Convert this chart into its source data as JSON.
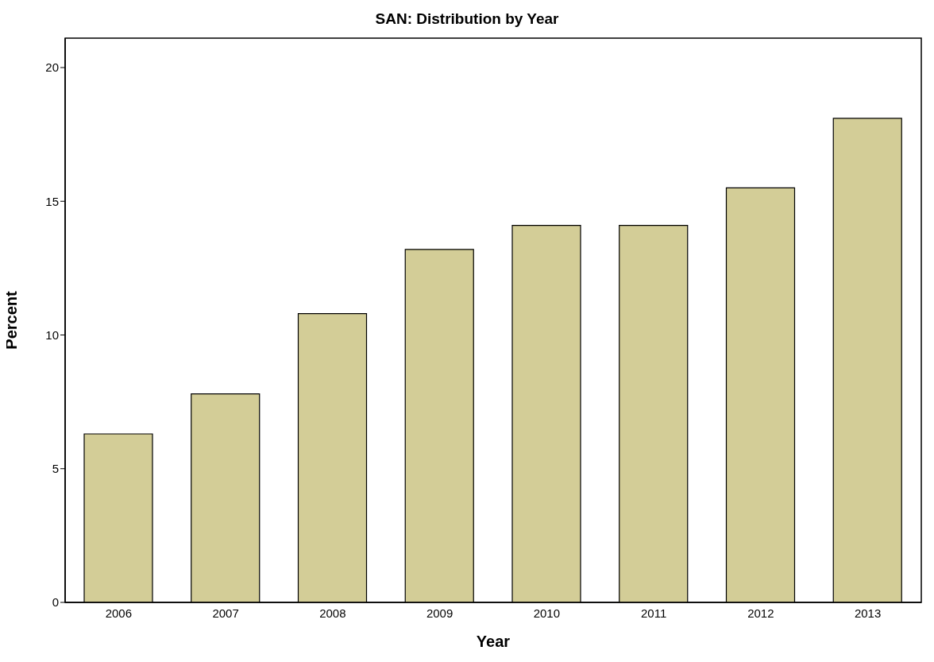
{
  "chart_data": {
    "type": "bar",
    "title": "SAN: Distribution by Year",
    "xlabel": "Year",
    "ylabel": "Percent",
    "categories": [
      "2006",
      "2007",
      "2008",
      "2009",
      "2010",
      "2011",
      "2012",
      "2013"
    ],
    "values": [
      6.3,
      7.8,
      10.8,
      13.2,
      14.1,
      14.1,
      15.5,
      18.1
    ],
    "color": "#d3cd97",
    "ylim": [
      0,
      21.1
    ],
    "yticks": [
      0,
      5,
      10,
      15,
      20
    ],
    "grid": false
  }
}
